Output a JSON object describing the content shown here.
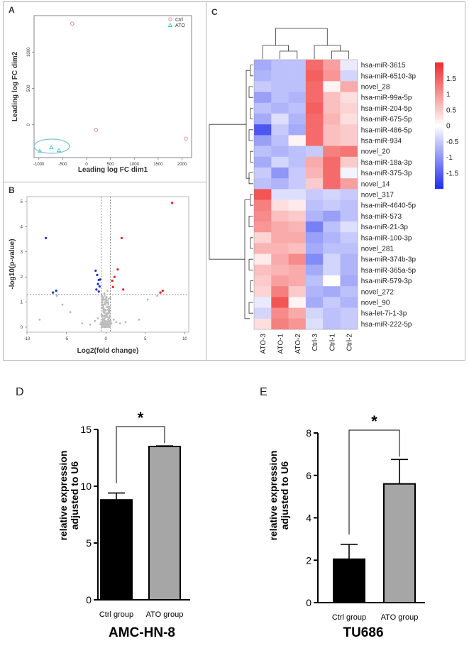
{
  "panels": {
    "a": {
      "letter": "A"
    },
    "b": {
      "letter": "B"
    },
    "c": {
      "letter": "C"
    },
    "d": {
      "letter": "D"
    },
    "e": {
      "letter": "E"
    }
  },
  "chart_data": [
    {
      "panel": "A",
      "type": "scatter",
      "title": "",
      "xlabel": "Leading log FC dim1",
      "ylabel": "Leading log FC dim2",
      "xlim": [
        -1100,
        2200
      ],
      "ylim": [
        -450,
        1500
      ],
      "xticks": [
        "-1000",
        "-500",
        "0",
        "500",
        "1000",
        "1500",
        "2000"
      ],
      "yticks": [
        "0",
        "500",
        "1000"
      ],
      "legend": [
        "Ctrl",
        "ATO"
      ],
      "series": [
        {
          "name": "Ctrl",
          "color": "#e8828c",
          "points": [
            [
              -300,
              1390
            ],
            [
              200,
              -70
            ],
            [
              2080,
              -190
            ]
          ]
        },
        {
          "name": "ATO",
          "color": "#3cc8d2",
          "points": [
            [
              -980,
              -360
            ],
            [
              -740,
              -310
            ],
            [
              -580,
              -350
            ]
          ]
        }
      ]
    },
    {
      "panel": "B",
      "type": "scatter",
      "xlabel": "Log2(fold change)",
      "ylabel": "-log10(p-value)",
      "xlim": [
        -10,
        10.5
      ],
      "ylim": [
        -0.2,
        5.2
      ],
      "xticks": [
        "-10",
        "-5",
        "0",
        "5",
        "10"
      ],
      "yticks": [
        "0",
        "1",
        "2",
        "3",
        "4",
        "5"
      ],
      "threshold_x": [
        -0.58,
        0.58
      ],
      "threshold_y": 1.3,
      "series": [
        {
          "name": "down",
          "color": "#1d2fd1",
          "points": [
            [
              -7.6,
              3.55
            ],
            [
              -6.3,
              1.45
            ],
            [
              -6.7,
              1.38
            ],
            [
              -1.3,
              2.25
            ],
            [
              -1.1,
              2.08
            ],
            [
              -0.9,
              1.88
            ],
            [
              -1.0,
              1.72
            ],
            [
              -0.8,
              1.62
            ],
            [
              -1.2,
              1.5
            ],
            [
              -0.7,
              1.9
            ],
            [
              -0.9,
              1.42
            ]
          ]
        },
        {
          "name": "up",
          "color": "#e11f1f",
          "points": [
            [
              8.4,
              4.95
            ],
            [
              2.0,
              3.55
            ],
            [
              1.5,
              2.3
            ],
            [
              1.1,
              2.0
            ],
            [
              0.9,
              1.6
            ],
            [
              2.2,
              1.5
            ],
            [
              0.8,
              1.85
            ],
            [
              7.2,
              1.45
            ],
            [
              6.9,
              1.38
            ]
          ]
        },
        {
          "name": "ns",
          "color": "#b8b8b8",
          "points": [
            [
              0.1,
              1.2
            ],
            [
              -0.2,
              1.1
            ],
            [
              0.3,
              0.95
            ],
            [
              -0.4,
              0.9
            ],
            [
              0.2,
              0.8
            ],
            [
              -0.1,
              0.7
            ],
            [
              0.4,
              0.65
            ],
            [
              -0.3,
              0.6
            ],
            [
              0.1,
              0.55
            ],
            [
              -0.5,
              0.5
            ],
            [
              0.5,
              0.45
            ],
            [
              0.0,
              0.4
            ],
            [
              -0.2,
              0.35
            ],
            [
              0.3,
              0.3
            ],
            [
              -0.4,
              0.28
            ],
            [
              0.2,
              0.22
            ],
            [
              -0.1,
              0.18
            ],
            [
              0.1,
              0.12
            ],
            [
              -0.3,
              0.1
            ],
            [
              0.4,
              0.08
            ],
            [
              0.0,
              0.05
            ],
            [
              -0.6,
              0.2
            ],
            [
              0.6,
              0.25
            ],
            [
              0.7,
              0.15
            ],
            [
              -0.7,
              0.12
            ],
            [
              1.0,
              0.3
            ],
            [
              -1.0,
              0.35
            ],
            [
              1.3,
              0.2
            ],
            [
              -1.4,
              0.25
            ],
            [
              1.8,
              0.15
            ],
            [
              -2.0,
              0.1
            ],
            [
              2.5,
              0.2
            ],
            [
              -3.0,
              0.15
            ],
            [
              -4.5,
              0.6
            ],
            [
              -5.5,
              0.9
            ],
            [
              -6.2,
              1.25
            ],
            [
              -8.4,
              0.3
            ],
            [
              4.2,
              0.3
            ],
            [
              5.3,
              1.1
            ],
            [
              6.5,
              1.25
            ],
            [
              -0.2,
              1.35
            ],
            [
              0.2,
              1.45
            ],
            [
              -0.5,
              1.25
            ],
            [
              0.5,
              1.15
            ],
            [
              -0.3,
              0.75
            ],
            [
              0.35,
              0.55
            ],
            [
              -0.15,
              0.45
            ],
            [
              0.15,
              0.98
            ],
            [
              -0.45,
              1.05
            ],
            [
              0.45,
              0.72
            ]
          ]
        }
      ]
    },
    {
      "panel": "C",
      "type": "heatmap",
      "columns": [
        "ATO-3",
        "ATO-1",
        "ATO-2",
        "Ctrl-3",
        "Ctrl-1",
        "Ctrl-2"
      ],
      "rows": [
        "hsa-miR-3615",
        "hsa-miR-6510-3p",
        "novel_28",
        "hsa-miR-99a-5p",
        "hsa-miR-204-5p",
        "hsa-miR-675-5p",
        "hsa-miR-486-5p",
        "hsa-miR-934",
        "novel_20",
        "hsa-miR-18a-3p",
        "hsa-miR-375-3p",
        "novel_14",
        "novel_317",
        "hsa-miR-4640-5p",
        "hsa-miR-573",
        "hsa-miR-21-3p",
        "hsa-miR-100-3p",
        "novel_281",
        "hsa-miR-374b-3p",
        "hsa-miR-365a-5p",
        "hsa-miR-579-3p",
        "novel_272",
        "novel_90",
        "hsa-let-7i-1-3p",
        "hsa-miR-222-5p"
      ],
      "values": [
        [
          -0.8,
          -0.6,
          -0.6,
          1.4,
          0.9,
          -0.2
        ],
        [
          -0.7,
          -0.6,
          -0.6,
          1.5,
          1.0,
          -0.4
        ],
        [
          -0.5,
          -0.6,
          -0.6,
          1.4,
          0.1,
          0.8
        ],
        [
          -0.9,
          -0.6,
          -0.7,
          1.4,
          0.6,
          0.3
        ],
        [
          -0.6,
          -0.7,
          -0.6,
          1.5,
          0.6,
          0.4
        ],
        [
          -0.8,
          -0.3,
          -0.7,
          1.4,
          0.7,
          0.3
        ],
        [
          -1.6,
          -0.5,
          -0.8,
          1.4,
          0.6,
          0.5
        ],
        [
          -0.9,
          -0.6,
          0.1,
          1.4,
          0.6,
          0.5
        ],
        [
          -0.6,
          -0.7,
          -0.6,
          -0.5,
          1.2,
          1.3
        ],
        [
          -0.8,
          -0.4,
          -0.6,
          0.8,
          1.4,
          0.5
        ],
        [
          -0.5,
          -1.0,
          -0.5,
          0.7,
          1.4,
          -0.1
        ],
        [
          -0.6,
          -0.7,
          -0.5,
          0.5,
          1.4,
          0.9
        ],
        [
          1.6,
          -0.3,
          -0.3,
          -0.5,
          -0.4,
          -0.5
        ],
        [
          1.2,
          0.3,
          0.2,
          -0.6,
          -0.5,
          -0.6
        ],
        [
          1.1,
          0.6,
          0.5,
          -0.7,
          -0.9,
          -0.6
        ],
        [
          1.0,
          0.8,
          0.7,
          -1.2,
          -0.6,
          -0.3
        ],
        [
          0.4,
          0.8,
          0.8,
          -0.9,
          -0.7,
          -0.5
        ],
        [
          0.7,
          0.7,
          0.6,
          -0.8,
          -0.6,
          -0.6
        ],
        [
          0.2,
          0.8,
          1.1,
          -1.1,
          -0.4,
          -0.7
        ],
        [
          0.6,
          0.7,
          0.8,
          -0.8,
          -0.4,
          -0.7
        ],
        [
          0.5,
          0.9,
          0.8,
          -0.6,
          0.0,
          -0.8
        ],
        [
          0.4,
          1.2,
          0.5,
          -0.7,
          -0.8,
          -0.6
        ],
        [
          -0.2,
          1.6,
          0.1,
          -0.8,
          -0.5,
          -0.7
        ],
        [
          -0.4,
          1.1,
          0.8,
          -0.4,
          -0.6,
          -0.5
        ],
        [
          0.3,
          1.2,
          1.0,
          -0.3,
          -0.6,
          -0.5
        ]
      ],
      "scale": {
        "min": -2,
        "max": 2,
        "ticks": [
          "1.5",
          "1",
          "0.5",
          "0",
          "-0.5",
          "-1",
          "-1.5"
        ],
        "low_color": "#1e2cf0",
        "mid_color": "#ffffff",
        "high_color": "#f02a2a"
      }
    },
    {
      "panel": "D",
      "type": "bar",
      "categories": [
        "Ctrl group",
        "ATO group"
      ],
      "values": [
        8.8,
        13.5
      ],
      "errors": [
        0.6,
        0.05
      ],
      "colors": [
        "#000000",
        "#a6a6a6"
      ],
      "ylabel": "relative expression adjusted to U6",
      "ylabel_lines": [
        "relative expression",
        "adjusted to U6"
      ],
      "ylim": [
        0,
        15
      ],
      "yticks": [
        "0",
        "5",
        "10",
        "15"
      ],
      "significance": "*",
      "title": "AMC-HN-8"
    },
    {
      "panel": "E",
      "type": "bar",
      "categories": [
        "Ctrl group",
        "ATO group"
      ],
      "values": [
        2.05,
        5.6
      ],
      "errors": [
        0.7,
        1.15
      ],
      "colors": [
        "#000000",
        "#a6a6a6"
      ],
      "ylabel": "relative expression adjusted to U6",
      "ylabel_lines": [
        "relative expression",
        "adjusted to U6"
      ],
      "ylim": [
        0,
        8
      ],
      "yticks": [
        "0",
        "2",
        "4",
        "6",
        "8"
      ],
      "significance": "*",
      "title": "TU686"
    }
  ]
}
